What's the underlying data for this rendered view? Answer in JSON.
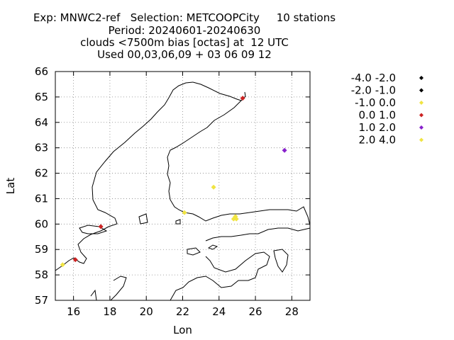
{
  "header": {
    "line1": "Exp: MNWC2-ref   Selection: METCOOPCity     10 stations",
    "line2": "Period: 20240601-20240630",
    "line3": "clouds <7500m bias [octas] at  12 UTC",
    "line4": "Used 00,03,06,09 + 03 06 09 12"
  },
  "chart_data": {
    "type": "scatter",
    "title": "clouds <7500m bias [octas] at  12 UTC",
    "xlabel": "Lon",
    "ylabel": "Lat",
    "xlim": [
      15,
      29
    ],
    "ylim": [
      57,
      66
    ],
    "xticks": [
      16,
      18,
      20,
      22,
      24,
      26,
      28
    ],
    "yticks": [
      57,
      58,
      59,
      60,
      61,
      62,
      63,
      64,
      65,
      66
    ],
    "grid": true,
    "legend_position": "right",
    "series": [
      {
        "name": "-4.0 -2.0",
        "color": "#000000",
        "points": []
      },
      {
        "name": "-2.0 -1.0",
        "color": "#000000",
        "points": []
      },
      {
        "name": "-1.0 0.0",
        "color": "#f0e442",
        "points": [
          [
            15.4,
            58.4
          ],
          [
            22.1,
            60.45
          ],
          [
            23.7,
            61.45
          ],
          [
            24.8,
            60.2
          ],
          [
            24.9,
            60.3
          ],
          [
            24.95,
            60.2
          ]
        ]
      },
      {
        "name": "0.0 1.0",
        "color": "#cc2222",
        "points": [
          [
            16.1,
            58.6
          ],
          [
            17.5,
            59.9
          ],
          [
            25.3,
            64.95
          ]
        ]
      },
      {
        "name": "1.0 2.0",
        "color": "#8822cc",
        "points": [
          [
            27.6,
            62.9
          ]
        ]
      },
      {
        "name": "2.0 4.0",
        "color": "#f0e442",
        "points": []
      }
    ]
  }
}
